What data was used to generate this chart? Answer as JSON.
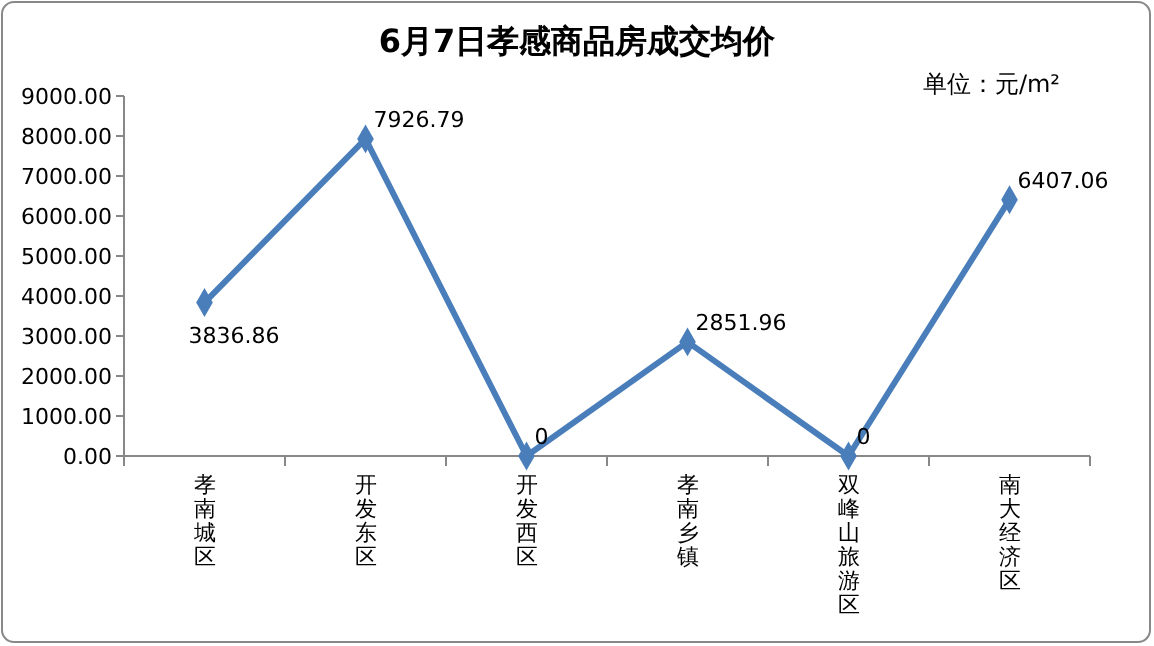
{
  "chart_data": {
    "type": "line",
    "title": "6月7日孝感商品房成交均价",
    "annotations": [
      "单位：元/m²"
    ],
    "categories": [
      "孝南城区",
      "开发东区",
      "开发西区",
      "孝南乡镇",
      "双峰山旅游区",
      "南大经济区"
    ],
    "series": [
      {
        "color": "#4a7ebb",
        "values": [
          3836.86,
          7926.79,
          0,
          2851.96,
          0,
          6407.06
        ]
      }
    ],
    "ylim": [
      0,
      9000
    ],
    "yticks": [
      {
        "value": 0,
        "label": "0.00"
      },
      {
        "value": 1000,
        "label": "1000.00"
      },
      {
        "value": 2000,
        "label": "2000.00"
      },
      {
        "value": 3000,
        "label": "3000.00"
      },
      {
        "value": 4000,
        "label": "4000.00"
      },
      {
        "value": 5000,
        "label": "5000.00"
      },
      {
        "value": 6000,
        "label": "6000.00"
      },
      {
        "value": 7000,
        "label": "7000.00"
      },
      {
        "value": 8000,
        "label": "8000.00"
      },
      {
        "value": 9000,
        "label": "9000.00"
      }
    ],
    "marker": "diamond",
    "data_labels": true
  }
}
